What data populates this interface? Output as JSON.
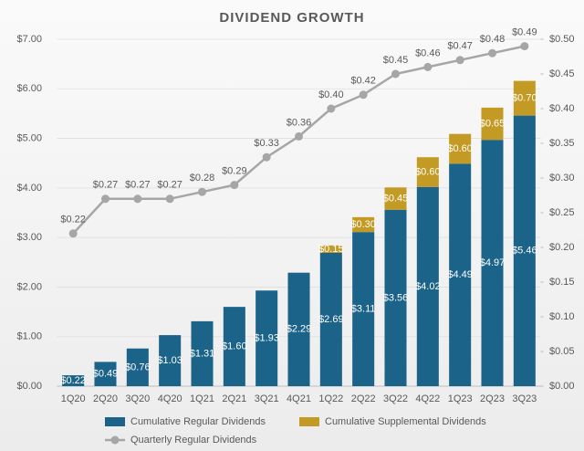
{
  "chart_data": {
    "type": "bar",
    "stacked": true,
    "title": "DIVIDEND GROWTH",
    "categories": [
      "1Q20",
      "2Q20",
      "3Q20",
      "4Q20",
      "1Q21",
      "2Q21",
      "3Q21",
      "4Q21",
      "1Q22",
      "2Q22",
      "3Q22",
      "4Q22",
      "1Q23",
      "2Q23",
      "3Q23"
    ],
    "series": [
      {
        "name": "Cumulative Regular Dividends",
        "type": "bar",
        "color": "#1b6388",
        "values": [
          0.22,
          0.49,
          0.76,
          1.03,
          1.31,
          1.6,
          1.93,
          2.29,
          2.69,
          3.11,
          3.56,
          4.02,
          4.49,
          4.97,
          5.46
        ],
        "value_labels": [
          "$0.22",
          "$0.49",
          "$0.76",
          "$1.03",
          "$1.31",
          "$1.60",
          "$1.93",
          "$2.29",
          "$2.69",
          "$3.11",
          "$3.56",
          "$4.02",
          "$4.49",
          "$4.97",
          "$5.46"
        ]
      },
      {
        "name": "Cumulative Supplemental Dividends",
        "type": "bar",
        "color": "#c39a24",
        "values": [
          null,
          null,
          null,
          null,
          null,
          null,
          null,
          null,
          0.15,
          0.3,
          0.45,
          0.6,
          0.6,
          0.65,
          0.7
        ],
        "value_labels": [
          null,
          null,
          null,
          null,
          null,
          null,
          null,
          null,
          "$0.15",
          "$0.30",
          "$0.45",
          "$0.60",
          "$0.60",
          "$0.65",
          "$0.70"
        ]
      },
      {
        "name": "Quarterly Regular Dividends",
        "type": "line",
        "axis": "y2",
        "color": "#a6a6a6",
        "values": [
          0.22,
          0.27,
          0.27,
          0.27,
          0.28,
          0.29,
          0.33,
          0.36,
          0.4,
          0.42,
          0.45,
          0.46,
          0.47,
          0.48,
          0.49
        ],
        "value_labels": [
          "$0.22",
          "$0.27",
          "$0.27",
          "$0.27",
          "$0.28",
          "$0.29",
          "$0.33",
          "$0.36",
          "$0.40",
          "$0.42",
          "$0.45",
          "$0.46",
          "$0.47",
          "$0.48",
          "$0.49"
        ]
      }
    ],
    "ylim": [
      0,
      7
    ],
    "yticks": [
      {
        "value": 0,
        "label": "$0.00"
      },
      {
        "value": 1,
        "label": "$1.00"
      },
      {
        "value": 2,
        "label": "$2.00"
      },
      {
        "value": 3,
        "label": "$3.00"
      },
      {
        "value": 4,
        "label": "$4.00"
      },
      {
        "value": 5,
        "label": "$5.00"
      },
      {
        "value": 6,
        "label": "$6.00"
      },
      {
        "value": 7,
        "label": "$7.00"
      }
    ],
    "y2lim": [
      0,
      0.5
    ],
    "y2ticks": [
      {
        "value": 0,
        "label": "$0.00"
      },
      {
        "value": 0.05,
        "label": "$0.05"
      },
      {
        "value": 0.1,
        "label": "$0.10"
      },
      {
        "value": 0.15,
        "label": "$0.15"
      },
      {
        "value": 0.2,
        "label": "$0.20"
      },
      {
        "value": 0.25,
        "label": "$0.25"
      },
      {
        "value": 0.3,
        "label": "$0.30"
      },
      {
        "value": 0.35,
        "label": "$0.35"
      },
      {
        "value": 0.4,
        "label": "$0.40"
      },
      {
        "value": 0.45,
        "label": "$0.45"
      },
      {
        "value": 0.5,
        "label": "$0.50"
      }
    ],
    "grid": true
  }
}
